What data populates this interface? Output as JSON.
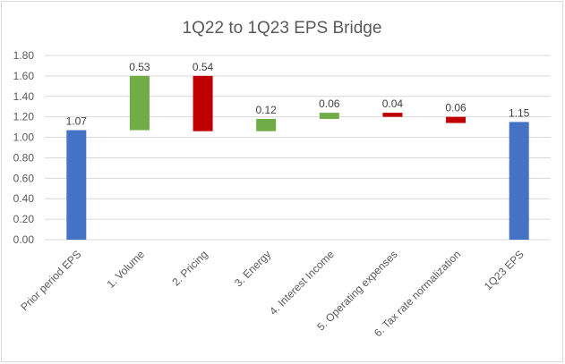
{
  "chart_data": {
    "type": "bar",
    "subtype": "waterfall",
    "title": "1Q22 to 1Q23 EPS Bridge",
    "xlabel": "",
    "ylabel": "",
    "ylim": [
      0,
      1.8
    ],
    "yticks": [
      "0.00",
      "0.20",
      "0.40",
      "0.60",
      "0.80",
      "1.00",
      "1.20",
      "1.40",
      "1.60",
      "1.80"
    ],
    "grid": true,
    "legend": "none",
    "categories": [
      "Prior period EPS",
      "1. Volume",
      "2. Pricing",
      "3. Energy",
      "4. Interest Income",
      "5. Operating expenses",
      "6. Tax rate normalization",
      "1Q23 EPS"
    ],
    "bars": [
      {
        "kind": "total",
        "value": 1.07,
        "label": "1.07",
        "color": "#4472c4"
      },
      {
        "kind": "increase",
        "value": 0.53,
        "label": "0.53",
        "color": "#70ad47"
      },
      {
        "kind": "decrease",
        "value": 0.54,
        "label": "0.54",
        "color": "#c00000"
      },
      {
        "kind": "increase",
        "value": 0.12,
        "label": "0.12",
        "color": "#70ad47"
      },
      {
        "kind": "increase",
        "value": 0.06,
        "label": "0.06",
        "color": "#70ad47"
      },
      {
        "kind": "decrease",
        "value": 0.04,
        "label": "0.04",
        "color": "#c00000"
      },
      {
        "kind": "decrease",
        "value": 0.06,
        "label": "0.06",
        "color": "#c00000"
      },
      {
        "kind": "total",
        "value": 1.15,
        "label": "1.15",
        "color": "#4472c4"
      }
    ]
  }
}
